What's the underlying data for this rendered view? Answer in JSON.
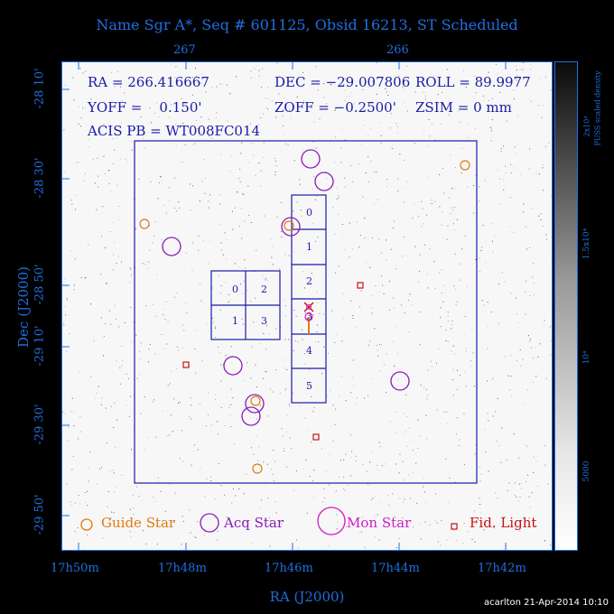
{
  "title": "Name Sgr A*, Seq # 601125, Obsid 16213, ST Scheduled",
  "top_ticks": [
    "267",
    "266"
  ],
  "bottom_ticks": [
    "17h50m",
    "17h48m",
    "17h46m",
    "17h44m",
    "17h42m"
  ],
  "left_ticks": [
    "-28 10'",
    "-28 30'",
    "-28 50'",
    "-29 10'",
    "-29 30'",
    "-29 50'"
  ],
  "x_label": "RA (J2000)",
  "y_label": "Dec (J2000)",
  "info": {
    "ra": "RA = 266.416667",
    "dec": "DEC = −29.007806",
    "roll": "ROLL = 89.9977",
    "yoff": "YOFF =    0.150'",
    "zoff": "ZOFF = −0.2500'",
    "zsim": "ZSIM = 0 mm",
    "acis": "ACIS PB = WT008FC014"
  },
  "acis_i_chips": [
    "0",
    "2",
    "1",
    "3"
  ],
  "acis_s_chips": [
    "0",
    "1",
    "2",
    "3",
    "4",
    "5"
  ],
  "colorbar_label": "PUSS scaled density",
  "colorbar_ticks": [
    "2x10⁴",
    "1.5x10⁴",
    "10⁴",
    "5000"
  ],
  "legend": {
    "guide": "Guide Star",
    "acq": "Acq Star",
    "mon": "Mon Star",
    "fid": "Fid. Light"
  },
  "colors": {
    "axis": "#1f6fe0",
    "field": "#1a1aa8",
    "guide": "#e07a10",
    "acq": "#8a1ab8",
    "mon": "#d01ad0",
    "fid": "#cc1010"
  },
  "credit": "acarlton 21-Apr-2014 10:10"
}
